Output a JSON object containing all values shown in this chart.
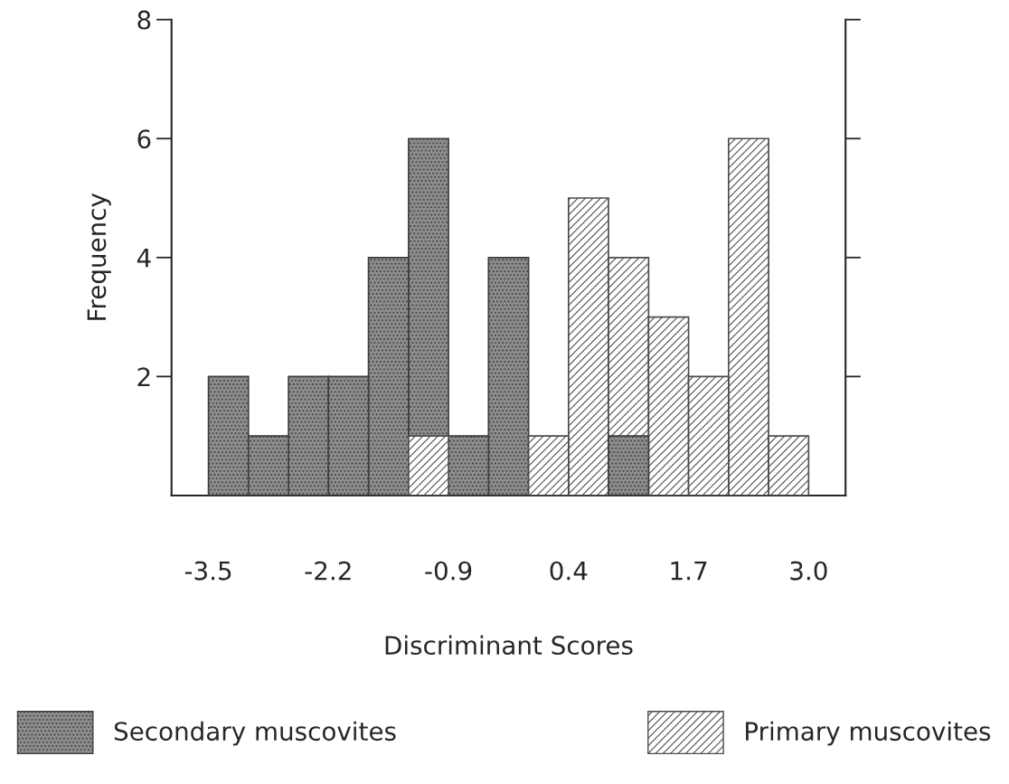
{
  "chart_data": {
    "type": "histogram",
    "xlabel": "Discriminant Scores",
    "ylabel": "Frequency",
    "bins": [
      -3.5,
      -3.067,
      -2.633,
      -2.2,
      -1.767,
      -1.333,
      -0.9,
      -0.467,
      -0.033,
      0.4,
      0.833,
      1.267,
      1.7,
      2.133,
      2.567,
      3.0
    ],
    "series": [
      {
        "name": "Secondary muscovites",
        "color": "#3f3f3f",
        "values": [
          2,
          1,
          2,
          2,
          4,
          6,
          1,
          4,
          null,
          null,
          1,
          null,
          null,
          null,
          null
        ]
      },
      {
        "name": "Primary muscovites",
        "color": "#4d4d4d",
        "values": [
          null,
          null,
          null,
          null,
          null,
          1,
          null,
          null,
          1,
          5,
          4,
          3,
          2,
          6,
          1
        ]
      }
    ],
    "xlim": [
      -3.9,
      3.4
    ],
    "xticks": [
      -3.5,
      -2.2,
      -0.9,
      0.4,
      1.7,
      {
        "value": 3.0,
        "label": "3.0"
      }
    ],
    "ylim": [
      0,
      8
    ],
    "yticks": [
      2,
      4,
      6,
      8
    ],
    "grid": false,
    "legend": "bottom"
  }
}
